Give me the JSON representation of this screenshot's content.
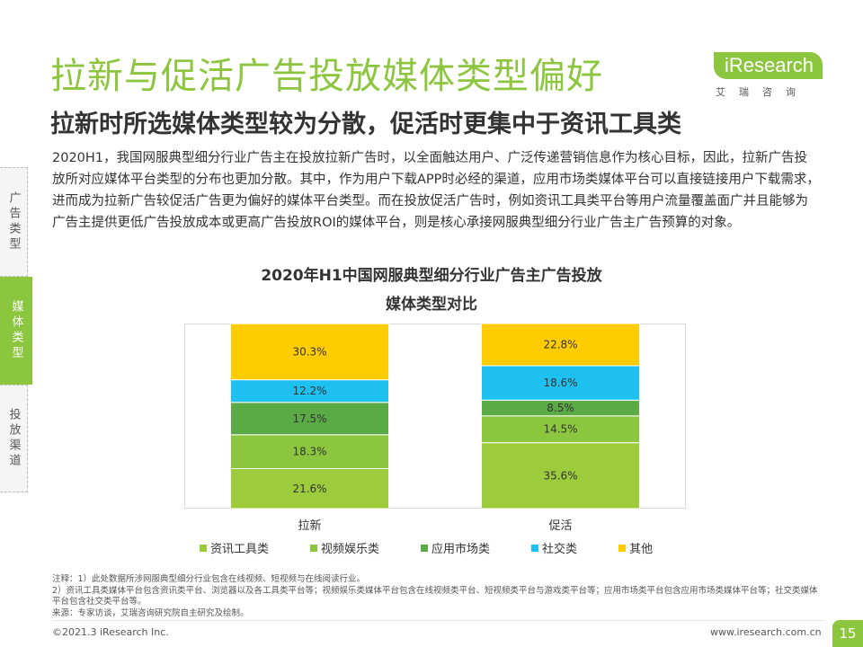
{
  "title": "拉新与促活广告投放媒体类型偏好",
  "subtitle": "拉新时所选媒体类型较为分散，促活时更集中于资讯工具类",
  "logo": {
    "main": "iResearch",
    "sub": "艾瑞咨询"
  },
  "intro": "2020H1，我国网服典型细分行业广告主在投放拉新广告时，以全面触达用户、广泛传递营销信息作为核心目标，因此，拉新广告投放所对应媒体平台类型的分布也更加分散。其中，作为用户下载APP时必经的渠道，应用市场类媒体平台可以直接链接用户下载需求，进而成为拉新广告较促活广告更为偏好的媒体平台类型。而在投放促活广告时，例如资讯工具类平台等用户流量覆盖面广并且能够为广告主提供更低广告投放成本或更高广告投放ROI的媒体平台，则是核心承接网服典型细分行业广告主广告预算的对象。",
  "side_tabs": [
    "广告类型",
    "媒体类型",
    "投放渠道"
  ],
  "chart_title_line1": "2020年H1中国网服典型细分行业广告主广告投放",
  "chart_title_line2": "媒体类型对比",
  "chart_data": {
    "type": "bar",
    "stacked": true,
    "normalized": true,
    "categories": [
      "拉新",
      "促活"
    ],
    "series": [
      {
        "name": "资讯工具类",
        "values": [
          21.6,
          35.6
        ],
        "color": "#9ccc3c"
      },
      {
        "name": "视频娱乐类",
        "values": [
          18.3,
          14.5
        ],
        "color": "#8cc63e"
      },
      {
        "name": "应用市场类",
        "values": [
          17.5,
          8.5
        ],
        "color": "#5aaa46"
      },
      {
        "name": "社交类",
        "values": [
          12.2,
          18.6
        ],
        "color": "#1ec0f0"
      },
      {
        "name": "其他",
        "values": [
          30.3,
          22.8
        ],
        "color": "#ffcc00"
      }
    ],
    "labels": [
      [
        "21.6%",
        "35.6%"
      ],
      [
        "18.3%",
        "14.5%"
      ],
      [
        "17.5%",
        "8.5%"
      ],
      [
        "12.2%",
        "18.6%"
      ],
      [
        "30.3%",
        "22.8%"
      ]
    ],
    "ylim": [
      0,
      100
    ],
    "legend_position": "bottom"
  },
  "notes": [
    "注释：1）此处数据所涉网服典型细分行业包含在线视频、短视频与在线阅读行业。",
    "2）资讯工具类媒体平台包含资讯类平台、浏览器以及各工具类平台等；视频娱乐类媒体平台包含在线视频类平台、短视频类平台与游戏类平台等；应用市场类平台包含应用市场类媒体平台等；社交类媒体平台包含社交类平台等。",
    "来源：专家访谈，艾瑞咨询研究院自主研究及绘制。"
  ],
  "footer_left": "©2021.3 iResearch Inc.",
  "footer_right": "www.iresearch.com.cn",
  "page_number": "15"
}
